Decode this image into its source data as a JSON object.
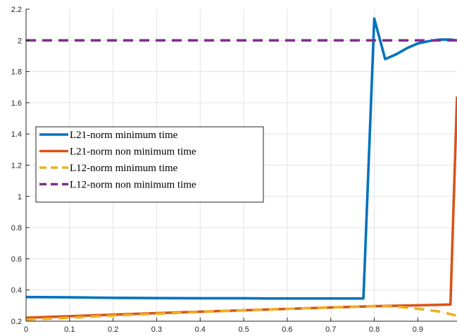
{
  "chart_data": {
    "type": "line",
    "title": "",
    "xlabel": "",
    "ylabel": "",
    "xlim": [
      0,
      0.99
    ],
    "ylim": [
      0.2,
      2.2
    ],
    "grid": true,
    "legend_position": "middle-left",
    "x_ticks": [
      0,
      0.1,
      0.2,
      0.3,
      0.4,
      0.5,
      0.6,
      0.7,
      0.8,
      0.9
    ],
    "x_tick_labels": [
      "0",
      "0.1",
      "0.2",
      "0.3",
      "0.4",
      "0.5",
      "0.6",
      "0.7",
      "0.8",
      "0.9"
    ],
    "y_ticks": [
      0.2,
      0.4,
      0.6,
      0.8,
      1.0,
      1.2,
      1.4,
      1.6,
      1.8,
      2.0,
      2.2
    ],
    "y_tick_labels": [
      "0.2",
      "0.4",
      "0.6",
      "0.8",
      "1",
      "1.2",
      "1.4",
      "1.6",
      "1.8",
      "2",
      "2.2"
    ],
    "series": [
      {
        "name": "L21-norm minimum time",
        "color": "#0072BD",
        "dash": "solid",
        "x": [
          0,
          0.1,
          0.2,
          0.3,
          0.4,
          0.5,
          0.55,
          0.6,
          0.7,
          0.775,
          0.8,
          0.825,
          0.85,
          0.875,
          0.9,
          0.925,
          0.95,
          0.975,
          0.99
        ],
        "y": [
          0.355,
          0.353,
          0.35,
          0.348,
          0.347,
          0.347,
          0.346,
          0.346,
          0.346,
          0.346,
          2.14,
          1.88,
          1.91,
          1.95,
          1.98,
          1.995,
          2.005,
          2.005,
          2.0
        ]
      },
      {
        "name": "L21-norm non minimum time",
        "color": "#D95319",
        "dash": "solid",
        "x": [
          0,
          0.1,
          0.2,
          0.3,
          0.4,
          0.5,
          0.6,
          0.7,
          0.8,
          0.9,
          0.975,
          0.99
        ],
        "y": [
          0.222,
          0.232,
          0.242,
          0.252,
          0.261,
          0.27,
          0.279,
          0.288,
          0.296,
          0.302,
          0.307,
          1.64
        ]
      },
      {
        "name": "L12-norm minimum time",
        "color": "#EDB120",
        "dash": "dashed",
        "x": [
          0,
          0.1,
          0.2,
          0.3,
          0.4,
          0.5,
          0.6,
          0.7,
          0.8,
          0.85,
          0.9,
          0.95,
          0.99
        ],
        "y": [
          0.21,
          0.222,
          0.236,
          0.248,
          0.259,
          0.269,
          0.279,
          0.289,
          0.297,
          0.294,
          0.28,
          0.262,
          0.235
        ]
      },
      {
        "name": "L12-norm non minimum time",
        "color": "#7E2F8E",
        "dash": "dashed",
        "x": [
          0,
          0.99
        ],
        "y": [
          2.0,
          2.0
        ]
      }
    ]
  }
}
